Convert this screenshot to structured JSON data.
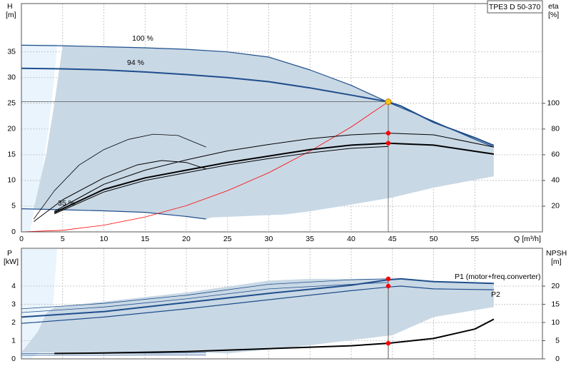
{
  "chart_data": [
    {
      "type": "line",
      "annotation": "TPE3 D 50-370",
      "xlabel": "Q [m³/h]",
      "ylabel": [
        "H",
        "[m]"
      ],
      "y2label": [
        "eta",
        "[%]"
      ],
      "xlim": [
        0,
        63.2
      ],
      "ylim": [
        0,
        44.4
      ],
      "y2lim": [
        0,
        177.6
      ],
      "xticks": [
        0,
        5,
        10,
        15,
        20,
        25,
        30,
        35,
        40,
        45,
        50,
        55
      ],
      "yticks": [
        0,
        5,
        10,
        15,
        20,
        25,
        30,
        35
      ],
      "y2ticks": [
        20,
        40,
        60,
        80,
        100
      ],
      "grid": true,
      "xtick_labels": true,
      "series": [
        {
          "fill": "#c9d8e5",
          "x": [
            1.5,
            3,
            4,
            5,
            10,
            15,
            20,
            25,
            30,
            35,
            40,
            44.5,
            50,
            55,
            57.3,
            57.3,
            50,
            45,
            40,
            35,
            32,
            23,
            22.4,
            20,
            15,
            10,
            5,
            1.5
          ],
          "values": [
            4.5,
            15,
            25,
            36.2,
            36.0,
            35.8,
            35.5,
            35.0,
            34.0,
            31.5,
            28.5,
            25.2,
            21.5,
            18,
            16.5,
            10.8,
            8.6,
            6.7,
            5.3,
            4.0,
            3.4,
            2.8,
            2.5,
            3.0,
            3.8,
            4.1,
            4.3,
            4.5
          ]
        },
        {
          "name": "100 %",
          "color": "#1f4e8c",
          "width": 1.2,
          "x": [
            0,
            5,
            10,
            15,
            20,
            25,
            30,
            35,
            40,
            44.5,
            50,
            55,
            57.3
          ],
          "values": [
            36.3,
            36.2,
            36.0,
            35.8,
            35.5,
            35.0,
            34.0,
            31.5,
            28.5,
            25.2,
            21.5,
            18,
            16.5
          ]
        },
        {
          "name": "94 %",
          "color": "#1f4e8c",
          "width": 2,
          "x": [
            0,
            5,
            10,
            15,
            20,
            25,
            30,
            35,
            40,
            44.5
          ],
          "values": [
            31.8,
            31.7,
            31.5,
            31.1,
            30.6,
            30.0,
            29.2,
            28.0,
            26.6,
            25.3
          ]
        },
        {
          "color": "#1f4e8c",
          "width": 2,
          "x": [
            44.5,
            46,
            50,
            55,
            57.3
          ],
          "values": [
            25.3,
            24.5,
            21.3,
            18.3,
            16.8
          ]
        },
        {
          "name": "35 %",
          "color": "#1f4e8c",
          "width": 1.2,
          "x": [
            0,
            5,
            10,
            15,
            20,
            22.4
          ],
          "values": [
            4.5,
            4.3,
            4.1,
            3.8,
            3.0,
            2.5
          ]
        },
        {
          "color": "#ff0000",
          "width": 0.8,
          "x": [
            0,
            5,
            10,
            15,
            20,
            25,
            30,
            35,
            40,
            44.5
          ],
          "values": [
            0,
            0.3,
            1.3,
            2.9,
            5.1,
            8.0,
            11.5,
            15.7,
            20.4,
            25.3
          ]
        },
        {
          "color": "#000000",
          "width": 1,
          "axis": "y2",
          "x": [
            4,
            10,
            15,
            20,
            25,
            30,
            35,
            40,
            44.5,
            50,
            57.3
          ],
          "values": [
            16,
            37,
            48,
            56,
            63,
            68,
            72.5,
            75.5,
            76.8,
            75.5,
            66
          ]
        },
        {
          "color": "#000000",
          "width": 2,
          "axis": "y2",
          "x": [
            4,
            10,
            15,
            20,
            25,
            30,
            35,
            40,
            44.5,
            50,
            57.3
          ],
          "values": [
            15,
            33,
            42,
            48,
            54,
            59,
            64,
            67.5,
            69,
            67.5,
            60.5
          ]
        },
        {
          "color": "#000000",
          "width": 1,
          "axis": "y2",
          "x": [
            4,
            10,
            15,
            20,
            25,
            30,
            35,
            40,
            44.5
          ],
          "values": [
            14,
            31,
            40,
            46,
            52,
            57,
            61.5,
            65,
            66.5
          ]
        },
        {
          "color": "#000000",
          "width": 0.8,
          "axis": "y2",
          "x": [
            1.5,
            4,
            7,
            10,
            13,
            16,
            19,
            22.4
          ],
          "values": [
            10,
            32,
            52,
            64,
            72,
            76,
            75,
            66
          ]
        },
        {
          "color": "#000000",
          "width": 1,
          "axis": "y2",
          "x": [
            1.5,
            5,
            10,
            14,
            17,
            20,
            22.4
          ],
          "values": [
            8,
            25,
            42,
            52,
            55.5,
            54,
            49
          ]
        },
        {
          "marker": "#f5c518",
          "guide": "hv",
          "x": [
            44.5
          ],
          "values": [
            25.3
          ]
        },
        {
          "marker": "#ff0000",
          "axis": "y2",
          "x": [
            44.5,
            44.5
          ],
          "values": [
            76.8,
            69
          ]
        }
      ]
    },
    {
      "type": "line",
      "ylabel": [
        "P",
        "[kW]"
      ],
      "y2label": [
        "NPSH",
        "[m]"
      ],
      "xlim": [
        0,
        63.2
      ],
      "ylim": [
        0,
        6.08
      ],
      "y2lim": [
        0,
        30.4
      ],
      "xticks": [
        5,
        10,
        15,
        20,
        25,
        30,
        35,
        40,
        45,
        50,
        55
      ],
      "yticks": [
        0,
        1,
        2,
        3,
        4
      ],
      "y2ticks": [
        0,
        5,
        10,
        15,
        20
      ],
      "grid": true,
      "xtick_labels": false,
      "series": [
        {
          "fill": "#c9d8e5",
          "x": [
            0,
            2,
            3,
            4,
            10,
            20,
            30,
            35,
            45,
            50,
            57.3,
            57.3,
            50,
            45,
            35,
            25,
            22.4,
            0
          ],
          "values": [
            0.35,
            1.5,
            2.5,
            2.85,
            3.15,
            3.65,
            4.3,
            4.4,
            4.4,
            4.25,
            4.15,
            2.85,
            2.3,
            1.3,
            0.75,
            0.3,
            0.35,
            0.35
          ]
        },
        {
          "color": "#1f4e8c",
          "width": 0.8,
          "x": [
            0,
            10,
            20,
            30,
            40,
            44.5
          ],
          "values": [
            2.75,
            3.05,
            3.5,
            4.1,
            4.35,
            4.4
          ]
        },
        {
          "color": "#1f4e8c",
          "width": 0.8,
          "x": [
            0,
            10,
            20,
            30,
            40,
            44.5
          ],
          "values": [
            2.55,
            2.85,
            3.3,
            3.85,
            4.1,
            4.2
          ]
        },
        {
          "name": "P1 (motor+freq.converter)",
          "color": "#1f4e8c",
          "width": 2,
          "x": [
            0,
            10,
            20,
            30,
            40,
            44.5,
            46,
            50,
            57.3
          ],
          "values": [
            2.3,
            2.6,
            3.1,
            3.6,
            4.05,
            4.35,
            4.4,
            4.25,
            4.15
          ]
        },
        {
          "name": "P2",
          "color": "#1f4e8c",
          "width": 1.2,
          "x": [
            0,
            10,
            20,
            30,
            40,
            44.5,
            46,
            50,
            57.3
          ],
          "values": [
            1.95,
            2.3,
            2.75,
            3.25,
            3.75,
            3.95,
            4.0,
            3.85,
            3.8
          ]
        },
        {
          "color": "#1f4e8c",
          "width": 0.8,
          "x": [
            0,
            10,
            22.4
          ],
          "values": [
            0.3,
            0.3,
            0.33
          ]
        },
        {
          "color": "#1f4e8c",
          "width": 0.8,
          "x": [
            0,
            10,
            22.4
          ],
          "values": [
            0.2,
            0.2,
            0.22
          ]
        },
        {
          "color": "#000000",
          "width": 2,
          "axis": "y2",
          "x": [
            4,
            10,
            20,
            30,
            40,
            44.5,
            50,
            55,
            57.3
          ],
          "values": [
            1.5,
            1.6,
            2.0,
            2.8,
            3.6,
            4.3,
            5.6,
            8.2,
            10.9
          ]
        },
        {
          "marker": "#ff0000",
          "guide": "v",
          "x": [
            44.5,
            44.5
          ],
          "values": [
            4.4,
            4.0
          ]
        },
        {
          "marker": "#ff0000",
          "axis": "y2",
          "x": [
            44.5
          ],
          "values": [
            4.3
          ]
        }
      ]
    }
  ]
}
